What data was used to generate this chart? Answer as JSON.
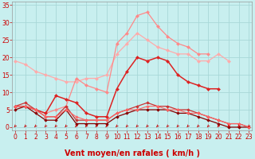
{
  "title": "",
  "xlabel": "Vent moyen/en rafales ( km/h )",
  "bg_color": "#c8efef",
  "grid_color": "#a8d8d8",
  "x_ticks": [
    0,
    1,
    2,
    3,
    4,
    5,
    6,
    7,
    8,
    9,
    10,
    11,
    12,
    13,
    14,
    15,
    16,
    17,
    18,
    19,
    20,
    21,
    22,
    23
  ],
  "y_ticks": [
    0,
    5,
    10,
    15,
    20,
    25,
    30,
    35
  ],
  "ylim": [
    -1,
    36
  ],
  "xlim": [
    -0.3,
    23.3
  ],
  "series": [
    {
      "x": [
        0,
        1,
        2,
        3,
        4,
        5,
        6,
        7,
        8,
        9,
        10,
        11,
        12,
        13,
        14,
        15,
        16,
        17,
        18,
        19,
        20,
        21
      ],
      "y": [
        19,
        18,
        16,
        15,
        14,
        13,
        13,
        14,
        14,
        15,
        21,
        24,
        27,
        25,
        23,
        22,
        21,
        21,
        19,
        19,
        21,
        19
      ],
      "color": "#ffaaaa",
      "linewidth": 0.9,
      "marker": "D",
      "markersize": 2.0
    },
    {
      "x": [
        0,
        1,
        2,
        3,
        4,
        5,
        6,
        7,
        8,
        9,
        10,
        11,
        12,
        13,
        14,
        15,
        16,
        17,
        18,
        19
      ],
      "y": [
        6,
        6,
        5,
        4,
        5,
        6,
        14,
        12,
        11,
        10,
        24,
        27,
        32,
        33,
        29,
        26,
        24,
        23,
        21,
        21
      ],
      "color": "#ff8888",
      "linewidth": 0.9,
      "marker": "D",
      "markersize": 2.0
    },
    {
      "x": [
        0,
        1,
        2,
        3,
        4,
        5,
        6,
        7,
        8,
        9,
        10,
        11,
        12,
        13,
        14,
        15,
        16,
        17,
        18,
        19,
        20
      ],
      "y": [
        6,
        6,
        5,
        4,
        9,
        8,
        7,
        4,
        3,
        3,
        11,
        16,
        20,
        19,
        20,
        19,
        15,
        13,
        12,
        11,
        11
      ],
      "color": "#dd2222",
      "linewidth": 1.1,
      "marker": "D",
      "markersize": 2.0
    },
    {
      "x": [
        0,
        1,
        2,
        3,
        4,
        5,
        6,
        7,
        8,
        9,
        10,
        11,
        12,
        13,
        14,
        15,
        16,
        17,
        18,
        19,
        20,
        21,
        22,
        23
      ],
      "y": [
        5,
        6,
        4,
        2,
        2,
        5,
        1,
        1,
        1,
        1,
        3,
        4,
        5,
        5,
        5,
        5,
        4,
        4,
        3,
        2,
        1,
        0,
        0,
        0
      ],
      "color": "#880000",
      "linewidth": 0.9,
      "marker": "D",
      "markersize": 1.8
    },
    {
      "x": [
        0,
        1,
        2,
        3,
        4,
        5,
        6,
        7,
        8,
        9,
        10,
        11,
        12,
        13,
        14,
        15,
        16,
        17,
        18,
        19,
        20,
        21,
        22,
        23
      ],
      "y": [
        6,
        7,
        5,
        3,
        3,
        6,
        2,
        2,
        2,
        2,
        4,
        5,
        6,
        7,
        6,
        6,
        5,
        5,
        4,
        3,
        2,
        1,
        1,
        0
      ],
      "color": "#cc3333",
      "linewidth": 0.9,
      "marker": "D",
      "markersize": 1.8
    },
    {
      "x": [
        0,
        1,
        2,
        3,
        4,
        5,
        6,
        7,
        8,
        9,
        10,
        11,
        12,
        13,
        14,
        15,
        16,
        17,
        18,
        19,
        20,
        21,
        22,
        23
      ],
      "y": [
        6,
        6,
        5,
        3,
        3,
        5,
        3,
        2,
        2,
        2,
        4,
        5,
        5,
        6,
        6,
        5,
        5,
        4,
        4,
        3,
        2,
        1,
        1,
        0
      ],
      "color": "#ff6666",
      "linewidth": 0.8,
      "marker": "D",
      "markersize": 1.8
    }
  ],
  "tick_label_color": "#cc0000",
  "xlabel_color": "#cc0000",
  "xlabel_fontsize": 7,
  "tick_fontsize": 5.5,
  "spine_color": "#999999"
}
